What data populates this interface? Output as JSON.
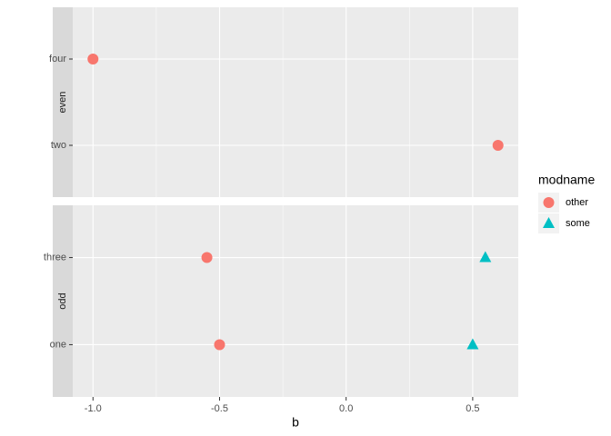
{
  "chart_data": {
    "type": "scatter",
    "x_label": "b",
    "xlim": [
      -1.08,
      0.68
    ],
    "xticks": [
      {
        "value": -1,
        "label": "-1.0"
      },
      -0.5,
      {
        "value": 0,
        "label": "0.0"
      },
      0.5
    ],
    "minor_xticks": [
      -0.75,
      -0.25,
      0.25
    ],
    "grid": true,
    "legend_title": "modname",
    "legend_position": "right",
    "series": [
      {
        "name": "other",
        "color": "#F8766D",
        "shape": "circle"
      },
      {
        "name": "some",
        "color": "#00BFC4",
        "shape": "triangle"
      }
    ],
    "facets": [
      {
        "label": "even",
        "categories": [
          "four",
          "two"
        ],
        "values": [
          [
            -1.0,
            0.6
          ],
          [
            null,
            null
          ]
        ]
      },
      {
        "label": "odd",
        "categories": [
          "three",
          "one"
        ],
        "values": [
          [
            -0.55,
            -0.5
          ],
          [
            0.55,
            0.5
          ]
        ]
      }
    ]
  }
}
